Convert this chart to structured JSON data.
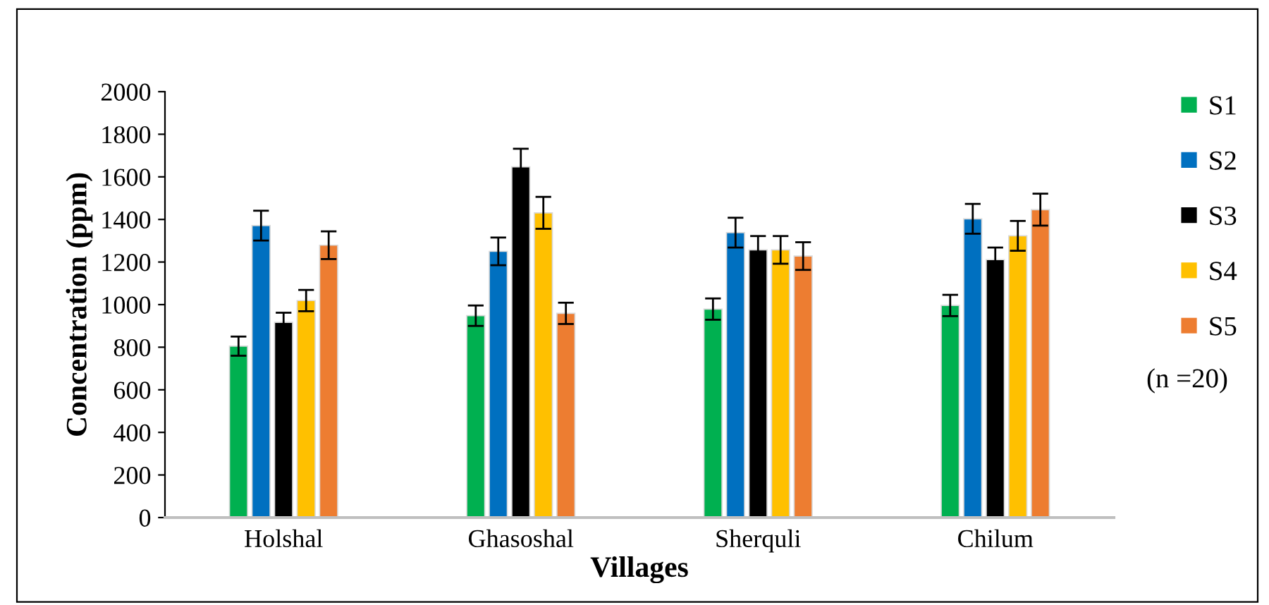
{
  "chart_data": {
    "type": "bar",
    "xlabel": "Villages",
    "ylabel": "Concentration (ppm)",
    "categories": [
      "Holshal",
      "Ghasoshal",
      "Sherquli",
      "Chilum"
    ],
    "series": [
      {
        "name": "S1",
        "color": "#00b050",
        "values": [
          805,
          948,
          979,
          996
        ],
        "errors": [
          45,
          48,
          50,
          50
        ]
      },
      {
        "name": "S2",
        "color": "#0070c0",
        "values": [
          1371,
          1250,
          1338,
          1403
        ],
        "errors": [
          70,
          65,
          70,
          70
        ]
      },
      {
        "name": "S3",
        "color": "#000000",
        "values": [
          917,
          1647,
          1257,
          1211
        ],
        "errors": [
          45,
          85,
          65,
          57
        ]
      },
      {
        "name": "S4",
        "color": "#ffc000",
        "values": [
          1019,
          1431,
          1257,
          1323
        ],
        "errors": [
          50,
          75,
          65,
          70
        ]
      },
      {
        "name": "S5",
        "color": "#ed7d31",
        "values": [
          1279,
          959,
          1228,
          1446
        ],
        "errors": [
          65,
          50,
          65,
          75
        ]
      }
    ],
    "ylim": [
      0,
      2000
    ],
    "yticks": [
      0,
      200,
      400,
      600,
      800,
      1000,
      1200,
      1400,
      1600,
      1800,
      2000
    ],
    "grid": false,
    "legend": "right",
    "annotations": [
      "(n =20)"
    ]
  }
}
